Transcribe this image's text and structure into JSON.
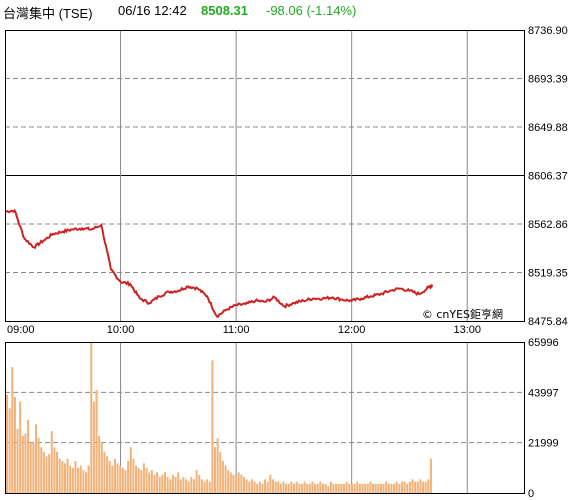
{
  "header": {
    "index_name": "台灣集中 (TSE)",
    "datetime": "06/16 12:42",
    "last_price": "8508.31",
    "change": "-98.06 (-1.14%)",
    "price_color": "#22aa22",
    "change_color": "#22aa22"
  },
  "watermark": "© cnYES鉅亨網",
  "colors": {
    "price_line": "#cc2222",
    "volume_bar": "#f2b27a",
    "grid": "#888888",
    "frame": "#000000"
  },
  "chart_data": [
    {
      "type": "line",
      "title": "",
      "ylim": [
        8475.84,
        8736.9
      ],
      "yticks": [
        "8736.90",
        "8693.39",
        "8649.88",
        "8606.37",
        "8562.86",
        "8519.35",
        "8475.84"
      ],
      "reference_close": 8606.37,
      "xticks": [
        "09:00",
        "10:00",
        "11:00",
        "12:00",
        "13:00"
      ],
      "series": [
        {
          "x": [
            "09:00",
            "09:05",
            "09:10",
            "09:15",
            "09:20",
            "09:25",
            "09:30",
            "09:35",
            "09:40",
            "09:45",
            "09:50",
            "09:55",
            "10:00",
            "10:05",
            "10:10",
            "10:15",
            "10:20",
            "10:25",
            "10:30",
            "10:35",
            "10:40",
            "10:45",
            "10:50",
            "10:55",
            "11:00",
            "11:05",
            "11:10",
            "11:15",
            "11:20",
            "11:25",
            "11:30",
            "11:35",
            "11:40",
            "11:45",
            "11:50",
            "11:55",
            "12:00",
            "12:05",
            "12:10",
            "12:15",
            "12:20",
            "12:25",
            "12:30",
            "12:35",
            "12:40",
            "12:42"
          ],
          "values": [
            8574,
            8575,
            8550,
            8542,
            8548,
            8554,
            8556,
            8558,
            8559,
            8558,
            8562,
            8522,
            8511,
            8509,
            8496,
            8492,
            8498,
            8502,
            8503,
            8507,
            8505,
            8498,
            8480,
            8486,
            8490,
            8491,
            8494,
            8493,
            8497,
            8489,
            8492,
            8494,
            8496,
            8496,
            8497,
            8495,
            8494,
            8496,
            8498,
            8500,
            8503,
            8505,
            8503,
            8500,
            8506,
            8508.31
          ]
        }
      ]
    },
    {
      "type": "bar",
      "title": "",
      "ylim": [
        0,
        65996
      ],
      "yticks": [
        "65996",
        "43997",
        "21999",
        "0"
      ],
      "values": [
        43000,
        37000,
        55000,
        42000,
        28000,
        40000,
        25000,
        26000,
        32000,
        22000,
        22000,
        30000,
        24000,
        20000,
        18000,
        16000,
        17000,
        27000,
        20000,
        18000,
        15000,
        14000,
        13000,
        15000,
        12000,
        11000,
        14000,
        11000,
        12000,
        10000,
        9000,
        12000,
        66000,
        40000,
        45000,
        25000,
        22000,
        18000,
        16000,
        14000,
        12000,
        15000,
        13000,
        12000,
        11000,
        10000,
        14000,
        20000,
        15000,
        12000,
        11000,
        10000,
        13000,
        11000,
        9000,
        10000,
        8000,
        9000,
        7000,
        8000,
        9000,
        7000,
        6000,
        8000,
        7000,
        9000,
        6000,
        7000,
        6000,
        5000,
        7000,
        6000,
        10000,
        8000,
        6000,
        5000,
        6000,
        5000,
        58000,
        20000,
        24000,
        18000,
        14000,
        12000,
        10000,
        9000,
        8000,
        7000,
        9000,
        8000,
        7000,
        6000,
        5000,
        6000,
        5000,
        4000,
        5000,
        4000,
        6000,
        5000,
        8000,
        6000,
        5000,
        5000,
        4000,
        5000,
        4000,
        4000,
        5000,
        4000,
        5000,
        4000,
        4000,
        5000,
        4000,
        4000,
        5000,
        4000,
        4000,
        5000,
        4000,
        4000,
        3000,
        5000,
        4000,
        4000,
        4000,
        4000,
        4000,
        5000,
        4000,
        4000,
        4000,
        5000,
        4000,
        4000,
        4000,
        4000,
        5000,
        4000,
        4000,
        4000,
        4000,
        4000,
        5000,
        4000,
        4000,
        4000,
        5000,
        4000,
        5000,
        5000,
        4000,
        5000,
        6000,
        5000,
        5000,
        6000,
        5000,
        5000,
        6000,
        15000
      ]
    }
  ]
}
